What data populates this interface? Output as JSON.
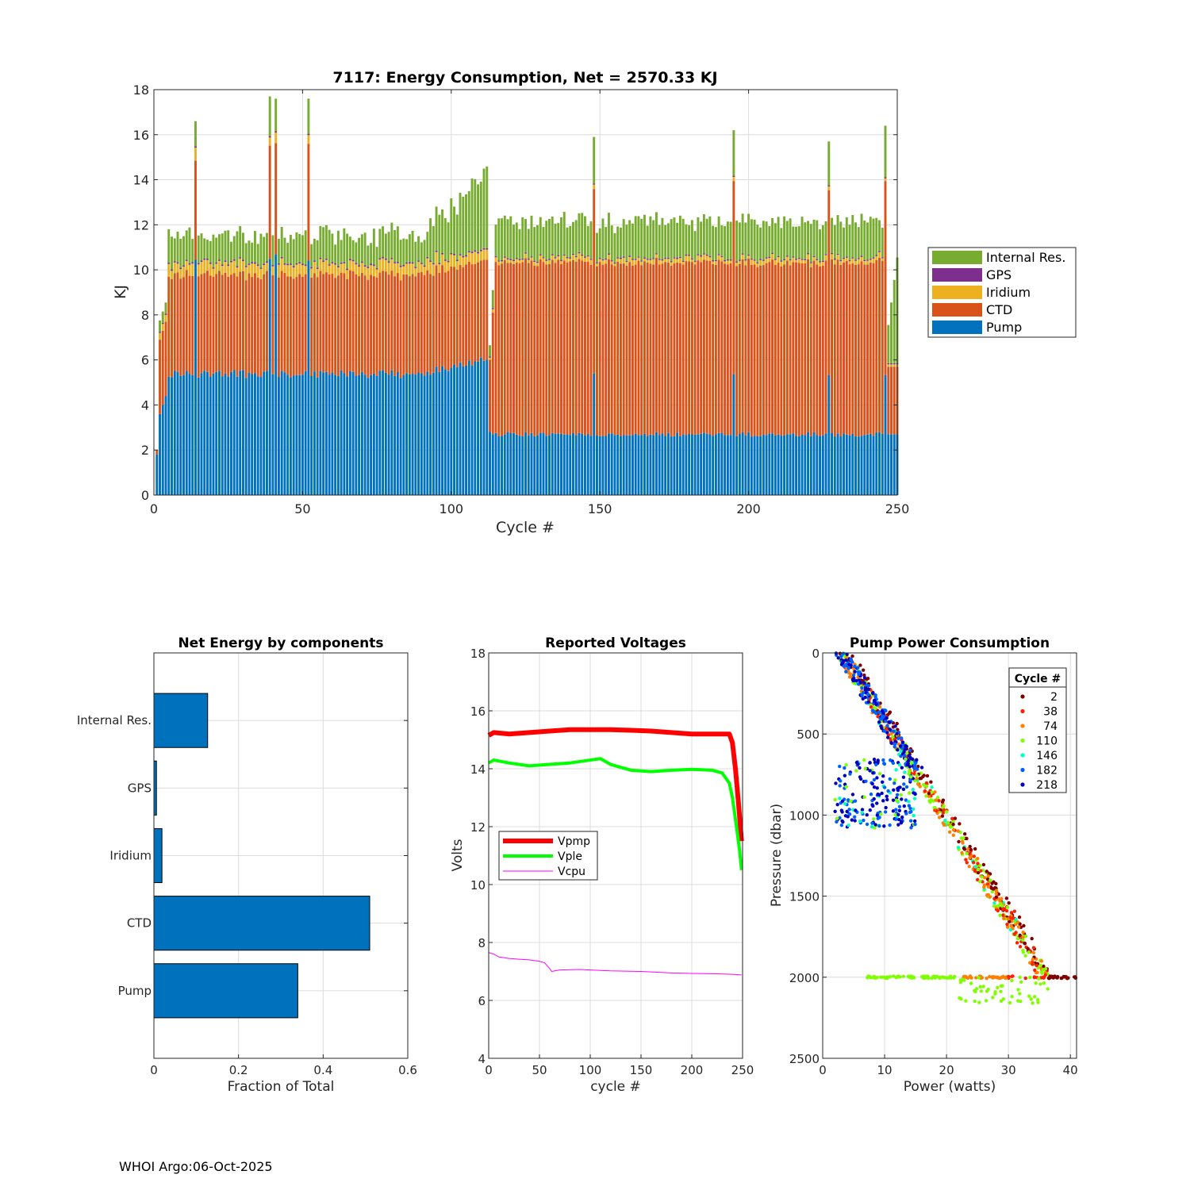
{
  "footer": "WHOI Argo:06-Oct-2025",
  "chart_data": [
    {
      "id": "energy",
      "type": "bar",
      "stacked": true,
      "title": "7117: Energy Consumption,  Net = 2570.33 KJ",
      "xlabel": "Cycle #",
      "ylabel": "KJ",
      "xlim": [
        0,
        250
      ],
      "ylim": [
        0,
        18
      ],
      "xticks": [
        0,
        50,
        100,
        150,
        200,
        250
      ],
      "yticks": [
        0,
        2,
        4,
        6,
        8,
        10,
        12,
        14,
        16,
        18
      ],
      "legend": [
        "Internal Res.",
        "GPS",
        "Iridium",
        "CTD",
        "Pump"
      ],
      "legend_position": "outside-right",
      "colors": {
        "Pump": "#0072BD",
        "CTD": "#D95319",
        "Iridium": "#EDB120",
        "GPS": "#7E2F8E",
        "Internal Res.": "#77AC30"
      },
      "series_note": "250 cycles; segment values per cycle (KJ), generated from the key values below",
      "key_values": {
        "cycles_1_112": {
          "Pump": 5.3,
          "CTD": 4.3,
          "Iridium": 0.45,
          "GPS": 0.05,
          "Internal Res.": 1.0
        },
        "cycles_113_250": {
          "Pump": 2.7,
          "CTD": 7.5,
          "Iridium": 0.15,
          "GPS": 0.05,
          "Internal Res.": 1.6
        },
        "spike_cycles": [
          14,
          39,
          41,
          52,
          148,
          195,
          227,
          246
        ],
        "spike_totals": [
          16.6,
          17.7,
          17.6,
          17.6,
          15.9,
          16.2,
          15.7,
          16.4
        ],
        "max_total_before_drop": 14.3
      }
    },
    {
      "id": "components",
      "type": "bar",
      "orientation": "horizontal",
      "title": "Net Energy by components",
      "xlabel": "Fraction of Total",
      "ylabel": "",
      "xlim": [
        0,
        0.6
      ],
      "xticks": [
        0,
        0.2,
        0.4,
        0.6
      ],
      "xtick_labels": [
        "0",
        "0.2",
        "0.4",
        "0.6"
      ],
      "categories": [
        "Pump",
        "CTD",
        "Iridium",
        "GPS",
        "Internal Res."
      ],
      "values": [
        0.34,
        0.51,
        0.019,
        0.006,
        0.127
      ],
      "color": "#0072BD"
    },
    {
      "id": "voltages",
      "type": "line",
      "title": "Reported Voltages",
      "xlabel": "cycle #",
      "ylabel": "Volts",
      "xlim": [
        0,
        250
      ],
      "ylim": [
        4,
        18
      ],
      "xticks": [
        0,
        50,
        100,
        150,
        200,
        250
      ],
      "yticks": [
        4,
        6,
        8,
        10,
        12,
        14,
        16,
        18
      ],
      "legend_position": "center-left",
      "series": [
        {
          "name": "Vpmp",
          "color": "#FF0000",
          "width": 6,
          "x": [
            0,
            5,
            20,
            40,
            60,
            80,
            100,
            120,
            140,
            160,
            180,
            200,
            220,
            237,
            240,
            243,
            246,
            249
          ],
          "y": [
            15.15,
            15.25,
            15.2,
            15.25,
            15.3,
            15.35,
            15.35,
            15.35,
            15.33,
            15.3,
            15.25,
            15.2,
            15.2,
            15.2,
            14.9,
            14.0,
            12.8,
            11.5
          ]
        },
        {
          "name": "Vple",
          "color": "#00FF00",
          "width": 4,
          "x": [
            0,
            5,
            20,
            40,
            60,
            80,
            100,
            110,
            120,
            140,
            160,
            180,
            200,
            220,
            230,
            237,
            240,
            244,
            247,
            249
          ],
          "y": [
            14.2,
            14.3,
            14.2,
            14.1,
            14.15,
            14.2,
            14.3,
            14.35,
            14.15,
            13.95,
            13.9,
            13.95,
            13.98,
            13.95,
            13.85,
            13.5,
            13.0,
            12.0,
            11.2,
            10.5
          ]
        },
        {
          "name": "Vcpu",
          "color": "#FF00FF",
          "width": 1,
          "x": [
            0,
            5,
            10,
            20,
            30,
            40,
            50,
            55,
            60,
            62,
            70,
            90,
            100,
            120,
            150,
            180,
            200,
            220,
            240,
            249
          ],
          "y": [
            7.65,
            7.6,
            7.5,
            7.45,
            7.42,
            7.4,
            7.35,
            7.3,
            7.1,
            7.0,
            7.05,
            7.07,
            7.05,
            7.02,
            7.0,
            6.95,
            6.93,
            6.92,
            6.9,
            6.88
          ]
        }
      ]
    },
    {
      "id": "pump_power",
      "type": "scatter",
      "title": "Pump Power Consumption",
      "xlabel": "Power (watts)",
      "ylabel": "Pressure (dbar)",
      "xlim": [
        0,
        41
      ],
      "ylim": [
        0,
        2500
      ],
      "y_reversed": true,
      "xticks": [
        0,
        10,
        20,
        30,
        40
      ],
      "yticks": [
        0,
        500,
        1000,
        1500,
        2000,
        2500
      ],
      "legend_title": "Cycle #",
      "legend_position": "top-right",
      "legend": [
        "2",
        "38",
        "74",
        "110",
        "146",
        "182",
        "218"
      ],
      "legend_colors": [
        "#800000",
        "#FF2000",
        "#FF8000",
        "#80FF00",
        "#00FFC0",
        "#0060FF",
        "#0000C0"
      ],
      "groups": [
        {
          "label": "descent profile",
          "from": [
            3,
            0
          ],
          "to": [
            36,
            2000
          ],
          "pressure_range": [
            0,
            1990
          ]
        },
        {
          "label": "park-depth plateau",
          "power_range": [
            7,
            41
          ],
          "pressure": 2000
        },
        {
          "label": "late-cycle branch",
          "from": [
            3,
            0
          ],
          "to": [
            15,
            700
          ],
          "pressure_range": [
            0,
            700
          ]
        },
        {
          "label": "late-cycle low-power cluster",
          "power_range": [
            2,
            15
          ],
          "pressure_range": [
            650,
            1080
          ]
        },
        {
          "label": "deep cluster",
          "power_range": [
            22,
            37
          ],
          "pressure_range": [
            2000,
            2160
          ]
        }
      ]
    }
  ]
}
